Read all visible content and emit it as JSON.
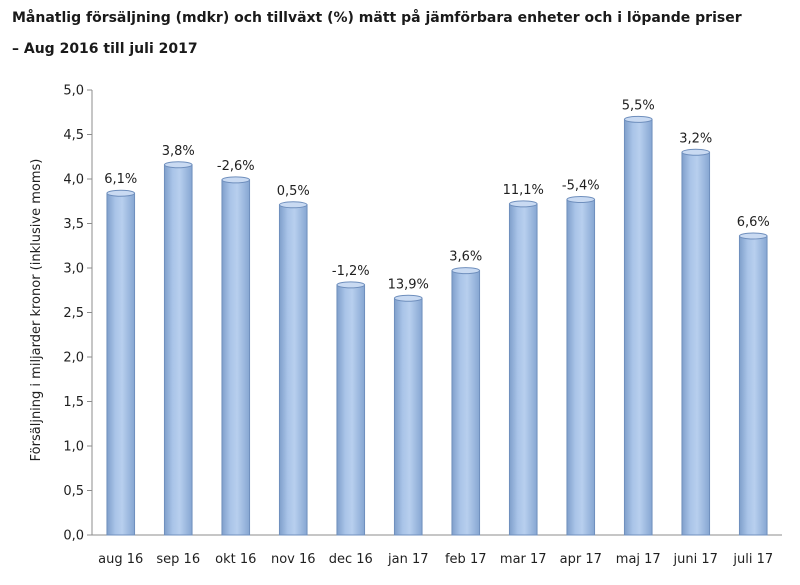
{
  "chart_data": {
    "type": "bar",
    "title": "Månatlig försäljning (mdkr) och tillväxt (%) mätt på jämförbara enheter och i löpande priser",
    "subtitle": "– Aug 2016 till juli 2017",
    "ylabel": "Försäljning i miljarder kronor (inklusive moms)",
    "xlabel": "",
    "ylim": [
      0,
      5
    ],
    "yticks": [
      "0,0",
      "0,5",
      "1,0",
      "1,5",
      "2,0",
      "2,5",
      "3,0",
      "3,5",
      "4,0",
      "4,5",
      "5,0"
    ],
    "grid": false,
    "categories": [
      "aug 16",
      "sep 16",
      "okt 16",
      "nov 16",
      "dec 16",
      "jan 17",
      "feb 17",
      "mar 17",
      "apr 17",
      "maj 17",
      "juni 17",
      "juli 17"
    ],
    "values": [
      3.84,
      4.16,
      3.99,
      3.71,
      2.81,
      2.66,
      2.97,
      3.72,
      3.77,
      4.67,
      4.3,
      3.36
    ],
    "data_labels": [
      "6,1%",
      "3,8%",
      "-2,6%",
      "0,5%",
      "-1,2%",
      "13,9%",
      "3,6%",
      "11,1%",
      "-5,4%",
      "5,5%",
      "3,2%",
      "6,6%"
    ],
    "bar_color": "#9dbbe2",
    "bar_edge_color": "#6f8fbd"
  }
}
